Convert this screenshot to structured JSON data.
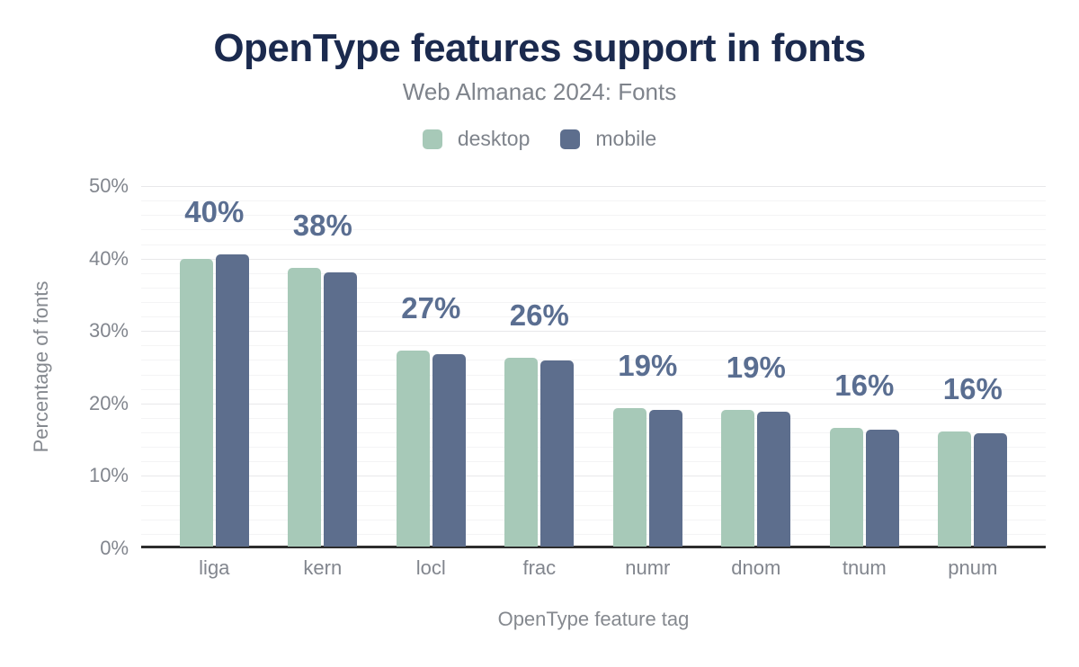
{
  "chart_data": {
    "type": "bar",
    "title": "OpenType features support in fonts",
    "subtitle": "Web Almanac 2024: Fonts",
    "xlabel": "OpenType feature tag",
    "ylabel": "Percentage of fonts",
    "categories": [
      "liga",
      "kern",
      "locl",
      "frac",
      "numr",
      "dnom",
      "tnum",
      "pnum"
    ],
    "series": [
      {
        "name": "desktop",
        "color": "#a7c9b8",
        "values": [
          39.7,
          38.5,
          27.0,
          26.1,
          19.1,
          18.9,
          16.4,
          15.9
        ]
      },
      {
        "name": "mobile",
        "color": "#5d6e8d",
        "values": [
          40.3,
          37.8,
          26.6,
          25.7,
          18.9,
          18.6,
          16.1,
          15.6
        ]
      }
    ],
    "bar_labels": [
      "40%",
      "38%",
      "27%",
      "26%",
      "19%",
      "19%",
      "16%",
      "16%"
    ],
    "y_ticks": [
      "0%",
      "10%",
      "20%",
      "30%",
      "40%",
      "50%"
    ],
    "ylim": [
      0,
      50
    ],
    "grid": true,
    "minor_grid_step": 2,
    "legend_position": "top",
    "colors": {
      "title": "#1b2a4e",
      "value_label": "#5a6e91",
      "axis_text": "#82868e",
      "axis_line": "#2d2d2d"
    }
  }
}
